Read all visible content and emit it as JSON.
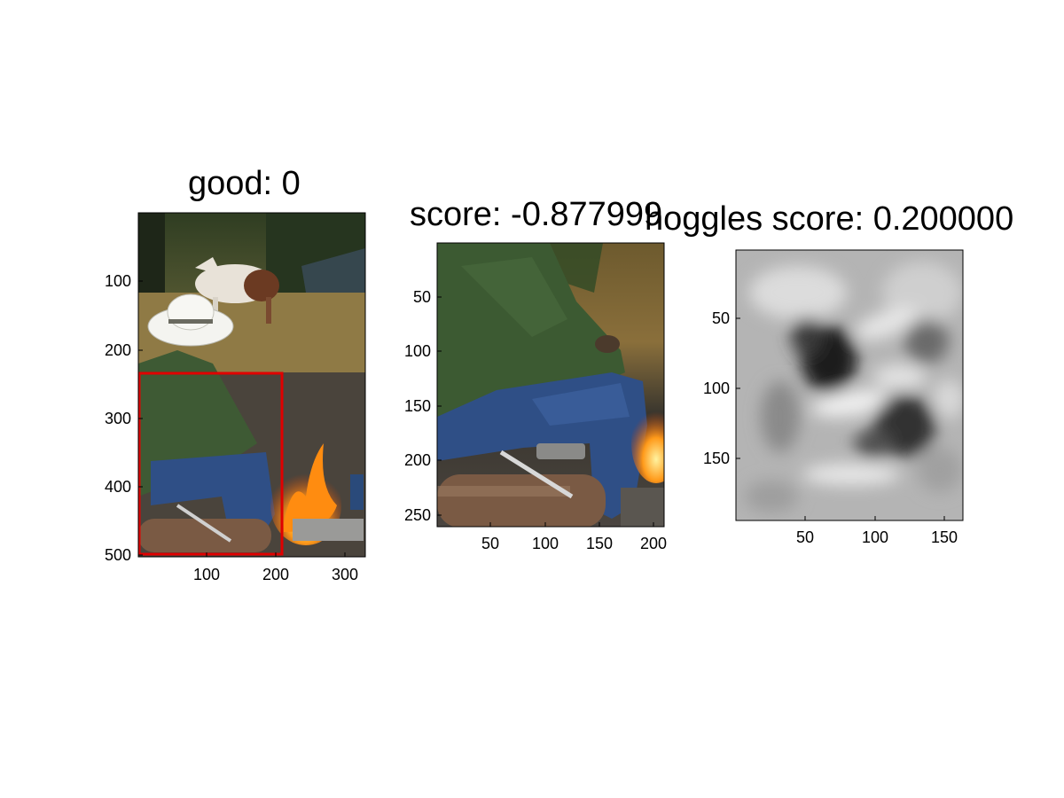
{
  "panels": [
    {
      "title": "good: 0",
      "x_ticks": [
        "100",
        "200",
        "300"
      ],
      "y_ticks": [
        "100",
        "200",
        "300",
        "400",
        "500"
      ],
      "content": "full-photo-with-red-bbox"
    },
    {
      "title": "score: -0.877999",
      "x_ticks": [
        "50",
        "100",
        "150",
        "200"
      ],
      "y_ticks": [
        "50",
        "100",
        "150",
        "200",
        "250"
      ],
      "content": "cropped-photo"
    },
    {
      "title": "hoggles score: 0.200000",
      "x_ticks": [
        "50",
        "100",
        "150"
      ],
      "y_ticks": [
        "50",
        "100",
        "150"
      ],
      "content": "hoggles-grayscale"
    }
  ],
  "colors": {
    "bbox": "#e00000",
    "axis": "#000000"
  }
}
